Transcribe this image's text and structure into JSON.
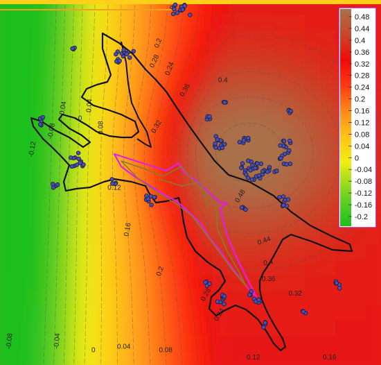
{
  "chart_data": {
    "type": "heatmap",
    "title": "",
    "xlabel": "",
    "ylabel": "",
    "grid": false,
    "legend_position": "top-right",
    "colormap": [
      {
        "value": -0.2,
        "color": "#1fbf1f"
      },
      {
        "value": -0.12,
        "color": "#5fcf24"
      },
      {
        "value": -0.04,
        "color": "#b8e21c"
      },
      {
        "value": 0.0,
        "color": "#f2ef10"
      },
      {
        "value": 0.08,
        "color": "#ffc21a"
      },
      {
        "value": 0.16,
        "color": "#ff8a1a"
      },
      {
        "value": 0.24,
        "color": "#ff3a12"
      },
      {
        "value": 0.32,
        "color": "#f20a0a"
      },
      {
        "value": 0.4,
        "color": "#c8462a"
      },
      {
        "value": 0.48,
        "color": "#a9714a"
      }
    ],
    "colorbar_ticks": [
      "0.48",
      "0.44",
      "0.4",
      "0.36",
      "0.32",
      "0.28",
      "0.24",
      "0.2",
      "0.16",
      "0.12",
      "0.08",
      "0.04",
      "0",
      "-0.04",
      "-0.08",
      "-0.12",
      "-0.16",
      "-0.2"
    ],
    "contour_labels": [
      {
        "text": "0",
        "u": 0.445,
        "v": 0.02,
        "rot": 90
      },
      {
        "text": "0.2",
        "u": 0.42,
        "v": 0.12,
        "rot": -70
      },
      {
        "text": "0.24",
        "u": 0.45,
        "v": 0.19,
        "rot": -70
      },
      {
        "text": "0.28",
        "u": 0.41,
        "v": 0.17,
        "rot": -65
      },
      {
        "text": "0.36",
        "u": 0.49,
        "v": 0.25,
        "rot": -60
      },
      {
        "text": "0.4",
        "u": 0.585,
        "v": 0.225,
        "rot": 0
      },
      {
        "text": "-0.04",
        "u": 0.17,
        "v": 0.3,
        "rot": -80
      },
      {
        "text": "0.04",
        "u": 0.24,
        "v": 0.29,
        "rot": -85
      },
      {
        "text": "0",
        "u": 0.21,
        "v": 0.33,
        "rot": 0
      },
      {
        "text": "-0.08",
        "u": 0.14,
        "v": 0.36,
        "rot": -80
      },
      {
        "text": "0.08",
        "u": 0.27,
        "v": 0.35,
        "rot": -90
      },
      {
        "text": "-0.12",
        "u": 0.09,
        "v": 0.41,
        "rot": -80
      },
      {
        "text": "0.12",
        "u": 0.3,
        "v": 0.52,
        "rot": 0
      },
      {
        "text": "0.32",
        "u": 0.415,
        "v": 0.35,
        "rot": -60
      },
      {
        "text": "0.48",
        "u": 0.635,
        "v": 0.54,
        "rot": -60
      },
      {
        "text": "0.16",
        "u": 0.34,
        "v": 0.63,
        "rot": -80
      },
      {
        "text": "0.44",
        "u": 0.695,
        "v": 0.665,
        "rot": -20
      },
      {
        "text": "0.4",
        "u": 0.705,
        "v": 0.725,
        "rot": -10
      },
      {
        "text": "0.2",
        "u": 0.425,
        "v": 0.745,
        "rot": -70
      },
      {
        "text": "0.36",
        "u": 0.705,
        "v": 0.77,
        "rot": 0
      },
      {
        "text": "0.32",
        "u": 0.775,
        "v": 0.81,
        "rot": 0
      },
      {
        "text": "0.28",
        "u": 0.545,
        "v": 0.81,
        "rot": -60
      },
      {
        "text": "0.24",
        "u": 0.58,
        "v": 0.865,
        "rot": -60
      },
      {
        "text": "-0.08",
        "u": 0.03,
        "v": 0.935,
        "rot": -85
      },
      {
        "text": "-0.04",
        "u": 0.155,
        "v": 0.935,
        "rot": -85
      },
      {
        "text": "0",
        "u": 0.245,
        "v": 0.965,
        "rot": 0
      },
      {
        "text": "0.04",
        "u": 0.325,
        "v": 0.955,
        "rot": 0
      },
      {
        "text": "0.08",
        "u": 0.435,
        "v": 0.965,
        "rot": 0
      },
      {
        "text": "0.12",
        "u": 0.665,
        "v": 0.985,
        "rot": 0
      },
      {
        "text": "0.16",
        "u": 0.865,
        "v": 0.985,
        "rot": 0
      }
    ]
  }
}
